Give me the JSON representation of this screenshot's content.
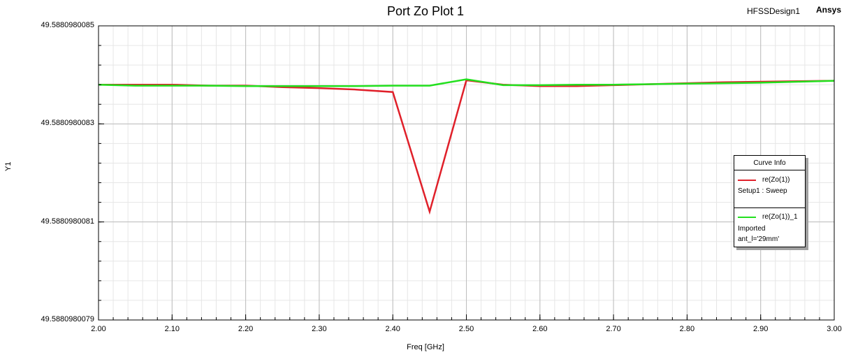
{
  "header": {
    "design_name": "HFSSDesign1",
    "brand": "Ansys"
  },
  "chart_data": {
    "type": "line",
    "title": "Port Zo Plot 1",
    "xlabel": "Freq [GHz]",
    "ylabel": "Y1",
    "xlim": [
      2.0,
      3.0
    ],
    "ylim": [
      49.5880980079,
      49.5880980085
    ],
    "x_ticks": [
      "2.00",
      "2.10",
      "2.20",
      "2.30",
      "2.40",
      "2.50",
      "2.60",
      "2.70",
      "2.80",
      "2.90",
      "3.00"
    ],
    "y_ticks": [
      "49.5880980085",
      "49.5880980083",
      "49.5880980081",
      "49.5880980079"
    ],
    "grid": true,
    "legend_position": "right",
    "legend_title": "Curve Info",
    "series": [
      {
        "name": "re(Zo(1))",
        "source_label": "Setup1 : Sweep",
        "color": "#e0202a",
        "x": [
          2.0,
          2.05,
          2.1,
          2.15,
          2.2,
          2.25,
          2.3,
          2.35,
          2.4,
          2.45,
          2.5,
          2.55,
          2.6,
          2.65,
          2.7,
          2.75,
          2.8,
          2.85,
          2.9,
          2.95,
          3.0
        ],
        "y": [
          49.58809800838,
          49.58809800838,
          49.58809800838,
          49.588098008378,
          49.588098008378,
          49.588098008375,
          49.588098008373,
          49.58809800837,
          49.588098008365,
          49.588098008121,
          49.588098008389,
          49.58809800838,
          49.588098008377,
          49.588098008377,
          49.588098008379,
          49.588098008381,
          49.588098008383,
          49.588098008385,
          49.588098008386,
          49.588098008387,
          49.588098008388
        ]
      },
      {
        "name": "re(Zo(1))_1",
        "source_label": "Imported",
        "extra_label": "ant_l='29mm'",
        "color": "#22e01e",
        "x": [
          2.0,
          2.05,
          2.1,
          2.15,
          2.2,
          2.25,
          2.3,
          2.35,
          2.4,
          2.45,
          2.5,
          2.55,
          2.6,
          2.65,
          2.7,
          2.75,
          2.8,
          2.85,
          2.9,
          2.95,
          3.0
        ],
        "y": [
          49.58809800838,
          49.588098008378,
          49.588098008378,
          49.588098008378,
          49.588098008377,
          49.588098008377,
          49.588098008377,
          49.588098008377,
          49.588098008378,
          49.588098008378,
          49.588098008391,
          49.588098008379,
          49.588098008379,
          49.58809800838,
          49.58809800838,
          49.588098008381,
          49.588098008382,
          49.588098008383,
          49.588098008384,
          49.588098008386,
          49.588098008388
        ]
      }
    ]
  }
}
